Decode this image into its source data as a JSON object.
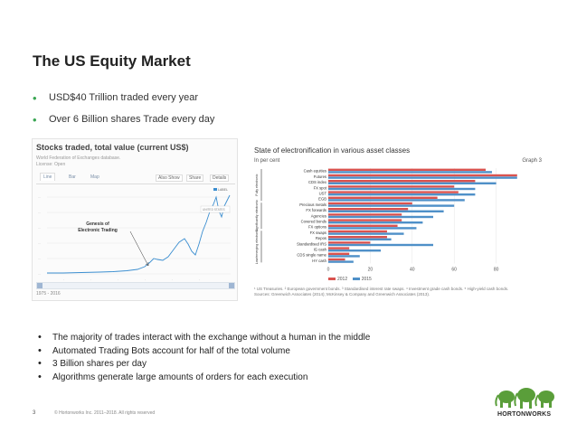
{
  "slide": {
    "title": "The US Equity Market",
    "top_bullets": [
      "USD$40 Trillion traded every year",
      "Over 6 Billion shares Trade every day"
    ],
    "bottom_bullets": [
      "The majority of trades interact with the exchange without a human in the middle",
      "Automated Trading Bots account for half of the total volume",
      "3 Billion shares per day",
      "Algorithms generate large amounts of orders for each execution"
    ],
    "page_number": "3",
    "copyright": "© Hortonworks Inc. 2011–2018. All rights reserved",
    "logo_text": "HORTONWORKS"
  },
  "left_chart": {
    "title": "Stocks traded, total value (current US$)",
    "source_line": "World Federation of Exchanges database.",
    "license_line": "License: Open",
    "tabs": [
      "Line",
      "Bar",
      "Map"
    ],
    "buttons": [
      "Also Show",
      "Share",
      "Details"
    ],
    "legend_label": "LABEL",
    "series_label": "UNITED STATES",
    "annotation": "Genesis of Electronic Trading",
    "range_label": "1975 - 2016",
    "line_color": "#3b8ed0"
  },
  "chart_data": {
    "type": "bar",
    "title": "State of electronification in various asset classes",
    "unit": "In per cent",
    "graph_label": "Graph 3",
    "categories": [
      "Cash equities",
      "Futures",
      "CDS index",
      "FX spot",
      "UST",
      "EGB",
      "Precious metals",
      "FX forwards",
      "Agencies",
      "Covered bonds",
      "FX options",
      "FX swaps",
      "Repos",
      "Standardised IRS",
      "IG cash",
      "CDS single name",
      "HY cash"
    ],
    "groups": [
      "Fully electronic",
      "Significantly electronic",
      "Low/emerging electronic"
    ],
    "series": [
      {
        "name": "2012",
        "color": "#d9534f",
        "values": [
          75,
          90,
          70,
          60,
          62,
          52,
          40,
          38,
          35,
          35,
          33,
          28,
          28,
          20,
          10,
          10,
          8
        ]
      },
      {
        "name": "2015",
        "color": "#4f90c8",
        "values": [
          78,
          90,
          80,
          70,
          70,
          65,
          60,
          55,
          50,
          45,
          42,
          36,
          30,
          50,
          25,
          15,
          12
        ]
      }
    ],
    "xlim": [
      0,
      100
    ],
    "xticks": [
      "0",
      "20",
      "40",
      "60",
      "80"
    ],
    "footnotes": "¹ US Treasuries. ² European government bonds. ³ Standardised interest rate swaps. ⁴ Investment grade cash bonds. ⁵ High-yield cash bonds.",
    "sources": "Sources: Greenwich Associates (2014); McKinsey & Company and Greenwich Associates (2013)."
  }
}
